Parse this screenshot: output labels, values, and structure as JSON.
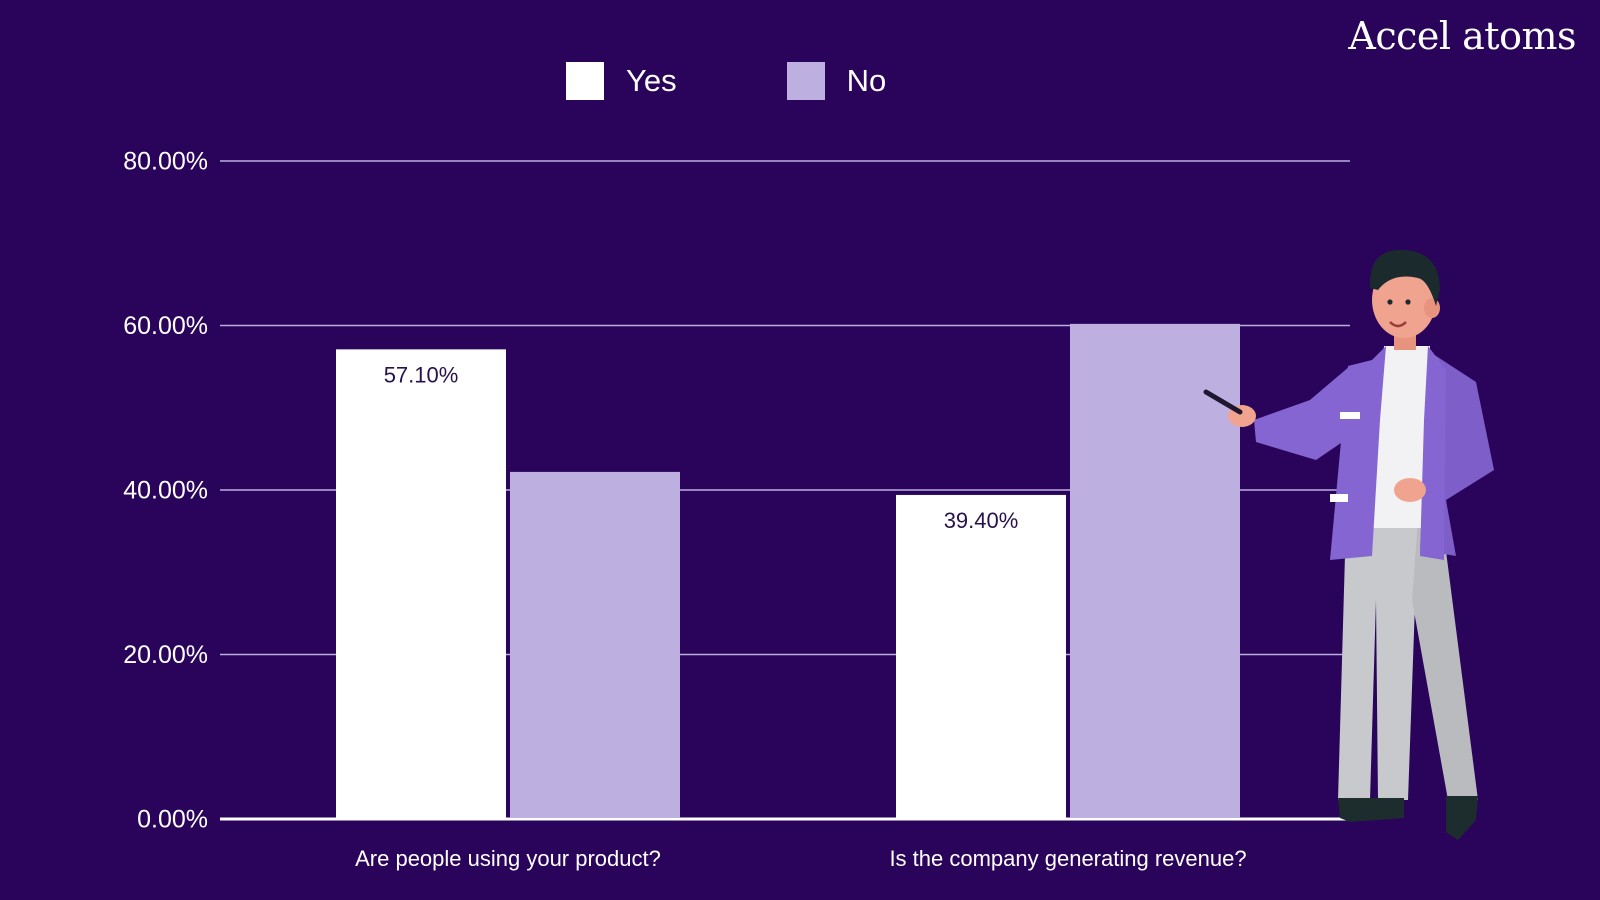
{
  "brand": {
    "logo_text": "Accel atoms"
  },
  "colors": {
    "background": "#29045a",
    "yes": "#ffffff",
    "no": "#bdb0e0",
    "grid": "#b9aede",
    "data_label": "#27124e"
  },
  "legend": {
    "items": [
      {
        "label": "Yes",
        "color": "#ffffff"
      },
      {
        "label": "No",
        "color": "#bdb0e0"
      }
    ]
  },
  "illustration": {
    "subject": "presenter-man-pointing-icon"
  },
  "chart_data": {
    "type": "bar",
    "categories": [
      "Are people using your product?",
      "Is the company generating revenue?"
    ],
    "series": [
      {
        "name": "Yes",
        "values": [
          57.1,
          39.4
        ]
      },
      {
        "name": "No",
        "values": [
          42.2,
          60.2
        ]
      }
    ],
    "data_labels": [
      "57.10%",
      "39.40%"
    ],
    "yticks": [
      "0.00%",
      "20.00%",
      "40.00%",
      "60.00%",
      "80.00%"
    ],
    "ytick_values": [
      0,
      20,
      40,
      60,
      80
    ],
    "ylim": [
      0,
      80
    ],
    "title": "",
    "xlabel": "",
    "ylabel": "",
    "grid": true,
    "legend_position": "top"
  }
}
